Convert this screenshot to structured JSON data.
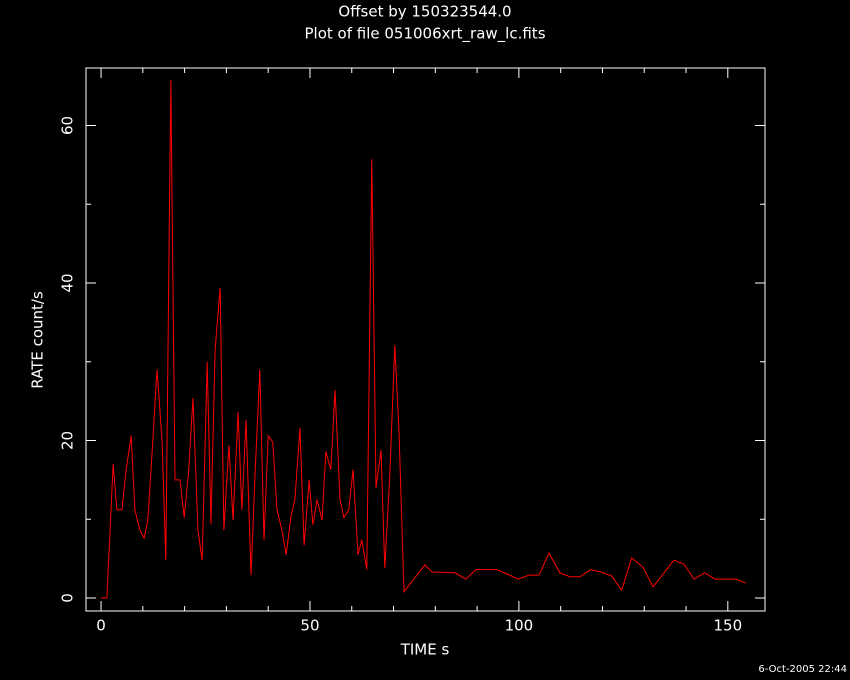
{
  "chart_data": {
    "type": "line",
    "title": "Offset by 150323544.0",
    "subtitle": "Plot of file 051006xrt_raw_lc.fits",
    "xlabel": "TIME  s",
    "ylabel": "RATE  count/s",
    "footer": "6-Oct-2005 22:44",
    "color": "#ff0000",
    "axis_color": "#ffffff",
    "background": "#000000",
    "x": [
      0,
      1.4,
      2.9,
      3.8,
      5,
      6,
      7.2,
      8.1,
      9.3,
      10.3,
      11.2,
      12.4,
      13.4,
      14.6,
      15.5,
      16.7,
      17.7,
      18.9,
      19.9,
      21,
      22,
      23.2,
      24.2,
      25.4,
      26.3,
      27.3,
      28.5,
      29.4,
      30.6,
      31.6,
      32.8,
      33.7,
      34.7,
      35.9,
      36.8,
      38,
      39,
      40,
      41.1,
      42.1,
      43.3,
      44.3,
      45.5,
      46.4,
      47.6,
      48.6,
      49.8,
      50.7,
      51.7,
      52.9,
      53.8,
      55,
      56,
      57.2,
      58.1,
      59.3,
      60.3,
      61.5,
      62.4,
      63.6,
      64.8,
      65.8,
      67,
      67.9,
      69.1,
      70.3,
      71.3,
      72.5,
      77.5,
      79.2,
      84.7,
      87.3,
      89.7,
      94.7,
      97.4,
      99.8,
      102.4,
      104.8,
      107.2,
      109.8,
      112.2,
      114.6,
      117.2,
      119.6,
      122.2,
      124.6,
      127,
      129.7,
      132.1,
      137.1,
      139.5,
      141.9,
      144.5,
      146.9,
      151.9,
      154.3
    ],
    "values": [
      0,
      0,
      17,
      11.2,
      11.2,
      16.3,
      20.6,
      11.2,
      8.6,
      7.6,
      9.9,
      20,
      29,
      20,
      4.8,
      65.8,
      15,
      15,
      10.2,
      16.3,
      25.4,
      8.6,
      4.8,
      30,
      9.4,
      31.5,
      39.4,
      8.6,
      19.4,
      9.9,
      23.6,
      11.2,
      22.6,
      2.9,
      15,
      29,
      7.4,
      20.6,
      19.8,
      11.2,
      8.6,
      5.5,
      10.5,
      12.5,
      21.6,
      6.7,
      15,
      9.3,
      12.5,
      9.9,
      18.6,
      16.3,
      26.4,
      12.5,
      10.2,
      11.2,
      16.3,
      5.5,
      7.4,
      3.6,
      55.7,
      14,
      18.8,
      3.8,
      15.5,
      32.1,
      21.3,
      0.8,
      4.2,
      3.3,
      3.2,
      2.4,
      3.6,
      3.6,
      3,
      2.4,
      2.9,
      2.9,
      5.7,
      3.2,
      2.7,
      2.7,
      3.6,
      3.3,
      2.8,
      1,
      5.1,
      3.9,
      1.4,
      4.8,
      4.3,
      2.4,
      3.2,
      2.4,
      2.4,
      1.9
    ],
    "xlim": [
      -3.6,
      158.9
    ],
    "ylim": [
      -1.65,
      67.3
    ],
    "xticks": [
      0,
      50,
      100,
      150
    ],
    "yticks": [
      0,
      20,
      40,
      60
    ],
    "xminorticks": [
      10,
      20,
      30,
      40,
      60,
      70,
      80,
      90,
      110,
      120,
      130,
      140
    ],
    "yminorticks": [
      10,
      30,
      50
    ]
  }
}
